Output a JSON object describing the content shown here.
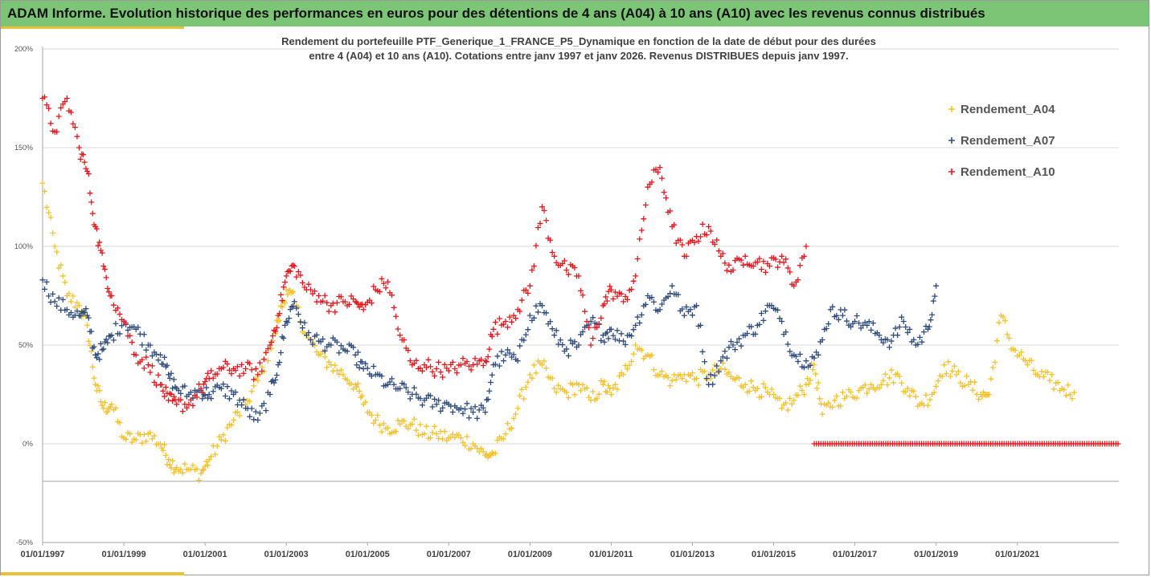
{
  "header": {
    "title": "ADAM Informe. Evolution historique des performances en euros pour des détentions de 4 ans (A04) à 10 ans (A10) avec les revenus connus distribués"
  },
  "colors": {
    "header_bg": "#7cc576",
    "accent": "#e8c23a",
    "A04": "#f2c12e",
    "A07": "#2f4b7c",
    "A10": "#e3171e"
  },
  "chart_data": {
    "type": "scatter",
    "subtitle_line1": "Rendement du portefeuille PTF_Generique_1_FRANCE_P5_Dynamique  en fonction de la date de début pour des durées",
    "subtitle_line2": "entre 4 (A04) et 10 ans (A10). Cotations entre janv 1997 et janv 2026. Revenus DISTRIBUES depuis janv 1997.",
    "xlabel": "",
    "ylabel": "",
    "x_range": [
      "1997-01-01",
      "2023-07-01"
    ],
    "ylim": [
      -50,
      200
    ],
    "y_ticks": [
      -50,
      0,
      50,
      100,
      150,
      200
    ],
    "y_tick_labels": [
      "-50%",
      "0%",
      "50%",
      "100%",
      "150%",
      "200%"
    ],
    "x_tick_labels": [
      "01/01/1997",
      "01/01/1999",
      "01/01/2001",
      "01/01/2003",
      "01/01/2005",
      "01/01/2007",
      "01/01/2009",
      "01/01/2011",
      "01/01/2013",
      "01/01/2015",
      "01/01/2017",
      "01/01/2019",
      "01/01/2021"
    ],
    "x_tick_years": [
      1997,
      1999,
      2001,
      2003,
      2005,
      2007,
      2009,
      2011,
      2013,
      2015,
      2017,
      2019,
      2021
    ],
    "grid": "horizontal",
    "legend_position": "top-right",
    "marker": "+",
    "series": [
      {
        "name": "Rendement_A04",
        "x": [
          1997.0,
          1997.3,
          1997.6,
          1997.9,
          1998.1,
          1998.3,
          1998.5,
          1998.7,
          1999.0,
          1999.3,
          1999.6,
          1999.9,
          2000.1,
          2000.3,
          2000.6,
          2000.9,
          2001.1,
          2001.4,
          2001.7,
          2002.0,
          2002.3,
          2002.6,
          2002.8,
          2003.0,
          2003.2,
          2003.5,
          2003.8,
          2004.1,
          2004.4,
          2004.7,
          2004.9,
          2005.2,
          2005.5,
          2005.8,
          2006.1,
          2006.4,
          2006.7,
          2007.0,
          2007.3,
          2007.6,
          2007.9,
          2008.1,
          2008.4,
          2008.7,
          2009.0,
          2009.3,
          2009.6,
          2009.9,
          2010.2,
          2010.5,
          2010.8,
          2011.0,
          2011.3,
          2011.6,
          2011.9,
          2012.2,
          2012.5,
          2012.8,
          2013.1,
          2013.4,
          2013.7,
          2014.0,
          2014.3,
          2014.6,
          2014.9,
          2015.2,
          2015.5,
          2015.8,
          2016.0,
          2016.2,
          2016.5,
          2016.8,
          2017.1,
          2017.4,
          2017.7,
          2018.0,
          2018.3,
          2018.6,
          2018.9,
          2019.2,
          2019.5,
          2019.8,
          2020.1,
          2020.3,
          2020.6,
          2020.9,
          2021.2,
          2021.5,
          2021.8,
          2022.1,
          2022.4
        ],
        "y": [
          132,
          100,
          75,
          70,
          60,
          30,
          18,
          20,
          3,
          2,
          5,
          0,
          -8,
          -12,
          -13,
          -15,
          -8,
          2,
          12,
          20,
          32,
          48,
          62,
          78,
          72,
          55,
          45,
          40,
          35,
          30,
          20,
          12,
          8,
          10,
          10,
          5,
          5,
          3,
          3,
          0,
          -6,
          -5,
          5,
          18,
          35,
          40,
          28,
          26,
          30,
          22,
          30,
          25,
          35,
          50,
          45,
          35,
          32,
          35,
          33,
          35,
          38,
          33,
          30,
          28,
          25,
          18,
          22,
          30,
          40,
          15,
          22,
          24,
          27,
          30,
          32,
          35,
          28,
          20,
          25,
          40,
          35,
          30,
          25,
          25,
          65,
          48,
          42,
          35,
          32,
          28,
          26
        ]
      },
      {
        "name": "Rendement_A07",
        "x": [
          1997.0,
          1997.3,
          1997.6,
          1997.9,
          1998.1,
          1998.3,
          1998.5,
          1998.7,
          1999.0,
          1999.3,
          1999.6,
          1999.9,
          2000.1,
          2000.3,
          2000.6,
          2000.9,
          2001.1,
          2001.4,
          2001.7,
          2002.0,
          2002.3,
          2002.6,
          2002.8,
          2003.0,
          2003.2,
          2003.5,
          2003.8,
          2004.1,
          2004.4,
          2004.7,
          2004.9,
          2005.2,
          2005.5,
          2005.8,
          2006.1,
          2006.4,
          2006.7,
          2007.0,
          2007.3,
          2007.6,
          2007.9,
          2008.1,
          2008.4,
          2008.7,
          2009.0,
          2009.3,
          2009.6,
          2009.9,
          2010.2,
          2010.5,
          2010.8,
          2011.0,
          2011.3,
          2011.6,
          2011.9,
          2012.2,
          2012.5,
          2012.8,
          2013.1,
          2013.4,
          2013.7,
          2014.0,
          2014.3,
          2014.6,
          2014.9,
          2015.2,
          2015.5,
          2015.8,
          2016.1,
          2016.4,
          2016.7,
          2017.0,
          2017.3,
          2017.6,
          2017.9,
          2018.2,
          2018.5,
          2018.8,
          2019.0
        ],
        "y": [
          83,
          72,
          68,
          65,
          65,
          45,
          48,
          55,
          62,
          58,
          50,
          45,
          35,
          28,
          25,
          27,
          25,
          28,
          25,
          18,
          12,
          25,
          40,
          62,
          72,
          55,
          52,
          50,
          48,
          45,
          38,
          35,
          30,
          28,
          25,
          22,
          20,
          20,
          18,
          16,
          16,
          40,
          45,
          42,
          65,
          70,
          55,
          48,
          50,
          62,
          55,
          58,
          52,
          60,
          75,
          68,
          80,
          65,
          70,
          30,
          42,
          50,
          55,
          60,
          70,
          62,
          45,
          42,
          45,
          68,
          65,
          62,
          60,
          55,
          52,
          62,
          50,
          58,
          80
        ]
      },
      {
        "name": "Rendement_A10",
        "x": [
          1997.0,
          1997.3,
          1997.6,
          1997.9,
          1998.1,
          1998.3,
          1998.5,
          1998.7,
          1999.0,
          1999.3,
          1999.6,
          1999.9,
          2000.1,
          2000.3,
          2000.6,
          2000.9,
          2001.1,
          2001.4,
          2001.7,
          2002.0,
          2002.3,
          2002.6,
          2002.8,
          2003.0,
          2003.2,
          2003.5,
          2003.8,
          2004.1,
          2004.4,
          2004.7,
          2004.9,
          2005.2,
          2005.5,
          2005.8,
          2006.1,
          2006.4,
          2006.7,
          2007.0,
          2007.3,
          2007.6,
          2007.9,
          2008.1,
          2008.4,
          2008.7,
          2009.0,
          2009.3,
          2009.6,
          2009.9,
          2010.2,
          2010.5,
          2010.8,
          2011.0,
          2011.3,
          2011.6,
          2011.9,
          2012.2,
          2012.5,
          2012.8,
          2013.1,
          2013.4,
          2013.7,
          2014.0,
          2014.3,
          2014.6,
          2014.9,
          2015.2,
          2015.5,
          2015.8
        ],
        "y": [
          175,
          158,
          175,
          150,
          138,
          110,
          90,
          75,
          62,
          45,
          40,
          30,
          22,
          20,
          20,
          28,
          33,
          38,
          38,
          38,
          35,
          50,
          65,
          85,
          90,
          78,
          75,
          70,
          72,
          72,
          68,
          78,
          82,
          55,
          40,
          40,
          38,
          37,
          40,
          40,
          42,
          58,
          62,
          68,
          80,
          120,
          95,
          88,
          85,
          50,
          70,
          78,
          72,
          85,
          130,
          140,
          110,
          95,
          105,
          110,
          95,
          88,
          95,
          92,
          90,
          95,
          80,
          100
        ]
      },
      {
        "name": "",
        "x_start": 2016.0,
        "x_end": 2023.5,
        "y": 0
      }
    ]
  }
}
